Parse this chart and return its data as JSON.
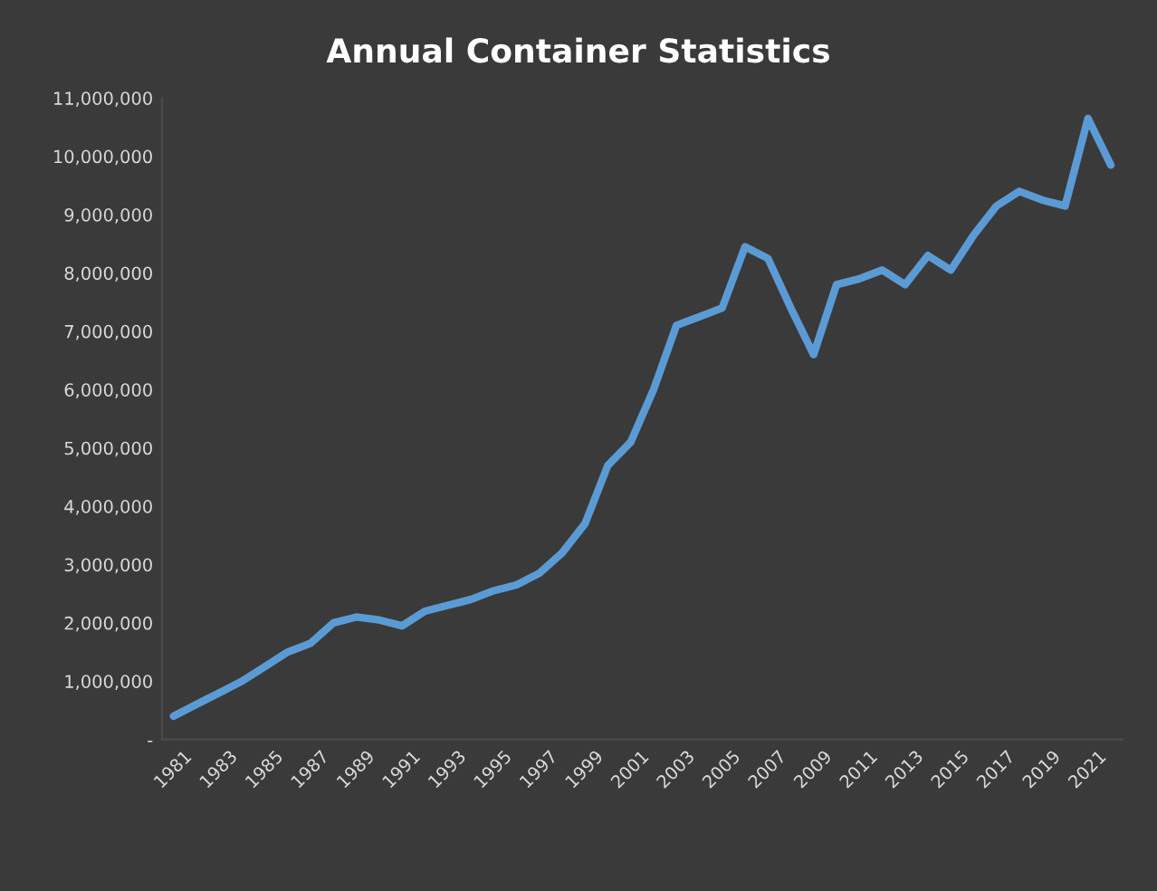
{
  "chart_data": {
    "type": "line",
    "title": "Annual Container Statistics",
    "categories": [
      "1981",
      null,
      "1983",
      null,
      "1985",
      null,
      "1987",
      null,
      "1989",
      null,
      "1991",
      null,
      "1993",
      null,
      "1995",
      null,
      "1997",
      null,
      "1999",
      null,
      "2001",
      null,
      "2003",
      null,
      "2005",
      null,
      "2007",
      null,
      "2009",
      null,
      "2011",
      null,
      "2013",
      null,
      "2015",
      null,
      "2017",
      null,
      "2019",
      null,
      "2021",
      null
    ],
    "series": [
      {
        "color": "#5b9bd5",
        "values": [
          400000,
          600000,
          800000,
          1000000,
          1250000,
          1500000,
          1650000,
          2000000,
          2100000,
          2050000,
          1950000,
          2200000,
          2300000,
          2400000,
          2550000,
          2650000,
          2850000,
          3200000,
          3700000,
          4700000,
          5100000,
          6000000,
          7100000,
          7250000,
          7400000,
          8450000,
          8250000,
          7400000,
          6600000,
          7800000,
          7900000,
          8050000,
          7800000,
          8300000,
          8050000,
          8650000,
          9150000,
          9400000,
          9250000,
          9150000,
          10650000,
          9850000
        ]
      }
    ],
    "ylim": [
      0,
      11000000
    ],
    "yticks": [
      {
        "value": 0,
        "label": "-"
      },
      {
        "value": 1000000,
        "label": "1,000,000"
      },
      {
        "value": 2000000,
        "label": "2,000,000"
      },
      {
        "value": 3000000,
        "label": "3,000,000"
      },
      {
        "value": 4000000,
        "label": "4,000,000"
      },
      {
        "value": 5000000,
        "label": "5,000,000"
      },
      {
        "value": 6000000,
        "label": "6,000,000"
      },
      {
        "value": 7000000,
        "label": "7,000,000"
      },
      {
        "value": 8000000,
        "label": "8,000,000"
      },
      {
        "value": 9000000,
        "label": "9,000,000"
      },
      {
        "value": 10000000,
        "label": "10,000,000"
      },
      {
        "value": 11000000,
        "label": "11,000,000"
      }
    ],
    "grid": false,
    "marker": "none",
    "line_style": "solid"
  }
}
